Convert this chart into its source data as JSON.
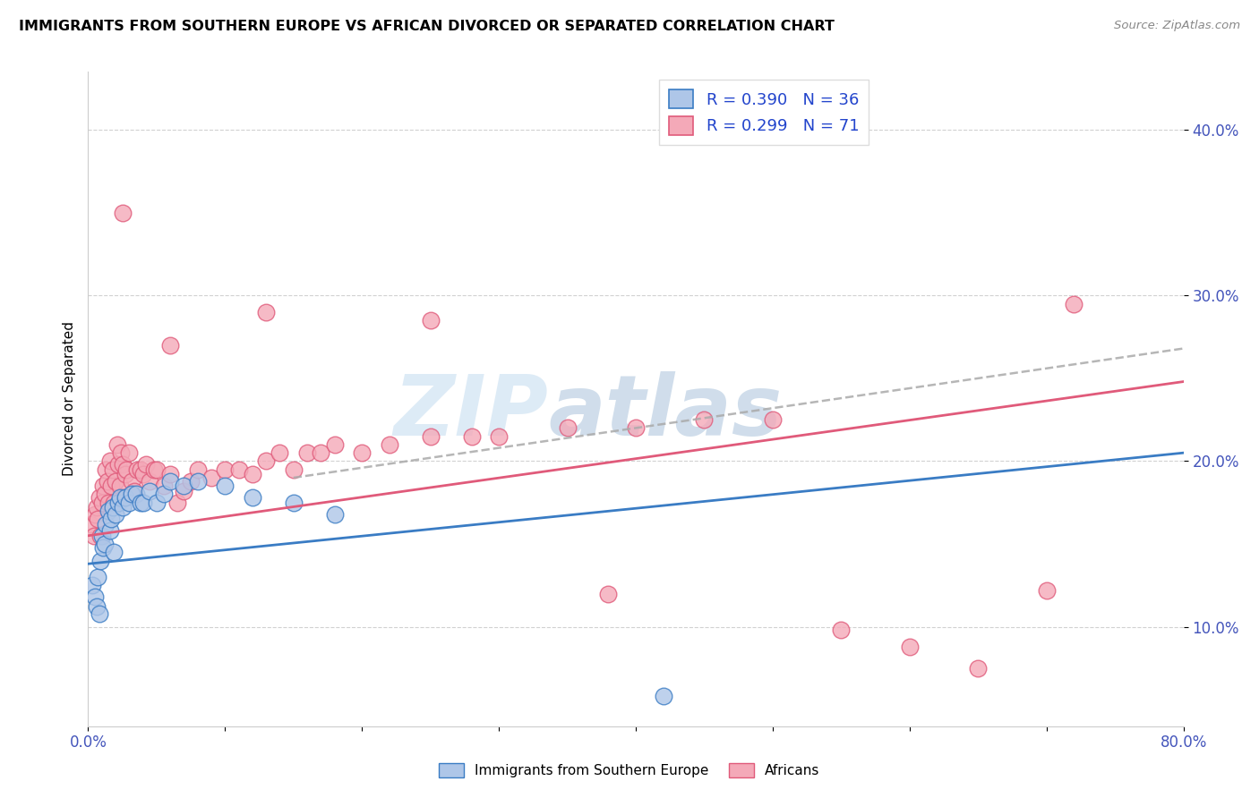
{
  "title": "IMMIGRANTS FROM SOUTHERN EUROPE VS AFRICAN DIVORCED OR SEPARATED CORRELATION CHART",
  "source": "Source: ZipAtlas.com",
  "ylabel": "Divorced or Separated",
  "y_ticks": [
    0.1,
    0.2,
    0.3,
    0.4
  ],
  "y_tick_labels": [
    "10.0%",
    "20.0%",
    "30.0%",
    "40.0%"
  ],
  "xlim": [
    0.0,
    0.8
  ],
  "ylim": [
    0.04,
    0.435
  ],
  "blue_R": 0.39,
  "blue_N": 36,
  "pink_R": 0.299,
  "pink_N": 71,
  "blue_color": "#aec6e8",
  "blue_line_color": "#3a7cc4",
  "pink_color": "#f4a9b8",
  "pink_line_color": "#e05a7a",
  "blue_scatter_x": [
    0.003,
    0.005,
    0.006,
    0.007,
    0.008,
    0.009,
    0.01,
    0.011,
    0.012,
    0.013,
    0.015,
    0.016,
    0.017,
    0.018,
    0.019,
    0.02,
    0.022,
    0.023,
    0.025,
    0.027,
    0.03,
    0.032,
    0.035,
    0.038,
    0.04,
    0.045,
    0.05,
    0.055,
    0.06,
    0.07,
    0.08,
    0.1,
    0.12,
    0.15,
    0.42,
    0.18
  ],
  "blue_scatter_y": [
    0.125,
    0.118,
    0.112,
    0.13,
    0.108,
    0.14,
    0.155,
    0.148,
    0.15,
    0.162,
    0.17,
    0.158,
    0.165,
    0.172,
    0.145,
    0.168,
    0.175,
    0.178,
    0.172,
    0.178,
    0.175,
    0.18,
    0.18,
    0.175,
    0.175,
    0.182,
    0.175,
    0.18,
    0.188,
    0.185,
    0.188,
    0.185,
    0.178,
    0.175,
    0.058,
    0.168
  ],
  "pink_scatter_x": [
    0.002,
    0.004,
    0.005,
    0.006,
    0.007,
    0.008,
    0.009,
    0.01,
    0.011,
    0.012,
    0.013,
    0.014,
    0.015,
    0.016,
    0.017,
    0.018,
    0.019,
    0.02,
    0.021,
    0.022,
    0.023,
    0.024,
    0.025,
    0.026,
    0.027,
    0.028,
    0.03,
    0.032,
    0.034,
    0.036,
    0.038,
    0.04,
    0.042,
    0.045,
    0.048,
    0.05,
    0.055,
    0.06,
    0.065,
    0.07,
    0.075,
    0.08,
    0.09,
    0.1,
    0.11,
    0.12,
    0.13,
    0.14,
    0.15,
    0.16,
    0.17,
    0.18,
    0.2,
    0.22,
    0.25,
    0.28,
    0.3,
    0.35,
    0.4,
    0.45,
    0.5,
    0.55,
    0.6,
    0.65,
    0.7,
    0.72,
    0.38,
    0.13,
    0.25,
    0.06,
    0.025
  ],
  "pink_scatter_y": [
    0.162,
    0.155,
    0.168,
    0.172,
    0.165,
    0.178,
    0.155,
    0.175,
    0.185,
    0.18,
    0.195,
    0.188,
    0.175,
    0.2,
    0.185,
    0.195,
    0.175,
    0.188,
    0.21,
    0.198,
    0.185,
    0.205,
    0.198,
    0.178,
    0.192,
    0.195,
    0.205,
    0.188,
    0.182,
    0.195,
    0.195,
    0.192,
    0.198,
    0.188,
    0.195,
    0.195,
    0.185,
    0.192,
    0.175,
    0.182,
    0.188,
    0.195,
    0.19,
    0.195,
    0.195,
    0.192,
    0.2,
    0.205,
    0.195,
    0.205,
    0.205,
    0.21,
    0.205,
    0.21,
    0.215,
    0.215,
    0.215,
    0.22,
    0.22,
    0.225,
    0.225,
    0.098,
    0.088,
    0.075,
    0.122,
    0.295,
    0.12,
    0.29,
    0.285,
    0.27,
    0.35
  ],
  "watermark_part1": "ZIP",
  "watermark_part2": "atlas",
  "blue_trendline_x": [
    0.0,
    0.8
  ],
  "blue_trendline_y": [
    0.138,
    0.205
  ],
  "pink_trendline_x": [
    0.0,
    0.8
  ],
  "pink_trendline_y": [
    0.155,
    0.248
  ],
  "dashed_trendline_x": [
    0.15,
    0.8
  ],
  "dashed_trendline_y": [
    0.19,
    0.268
  ]
}
